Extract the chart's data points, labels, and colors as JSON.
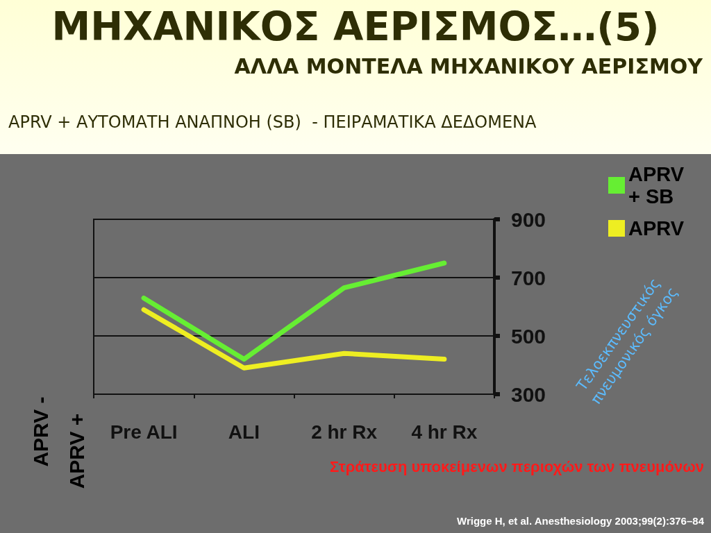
{
  "chart_data": {
    "type": "line",
    "title": "ΜΗΧΑΝΙΚΟΣ ΑΕΡΙΣΜΟΣ…(5)",
    "subtitle": "ΑΛΛΑ ΜΟΝΤΕΛΑ ΜΗΧΑΝΙΚΟΥ ΑΕΡΙΣΜΟΥ",
    "ylabel": "Τελοεκπνευστικός πνευμονικός όγκος",
    "annotations": [
      "APRV + ΑΥΤΟΜΑΤΗ ΑΝΑΠΝΟΗ (SB)  - ΠΕΙΡΑΜΑΤΙΚΑ ΔΕΔΟΜΕΝΑ",
      "APRV -",
      "APRV +",
      "Στράτευση υποκείμενων περιοχών των πνευμόνων",
      "Wrigge H, et al. Anesthesiology 2003;99(2):376–84"
    ],
    "categories": [
      "Pre ALI",
      "ALI",
      "2 hr Rx",
      "4 hr Rx"
    ],
    "series": [
      {
        "name": "APRV + SB",
        "color": "#66ee33",
        "values": [
          630,
          420,
          665,
          750
        ]
      },
      {
        "name": "APRV",
        "color": "#eeee22",
        "values": [
          590,
          390,
          440,
          420
        ]
      }
    ],
    "ylim": [
      300,
      900
    ],
    "yticks": [
      300,
      500,
      700,
      900
    ],
    "grid": "y",
    "legend": "top right",
    "marker": "none"
  }
}
